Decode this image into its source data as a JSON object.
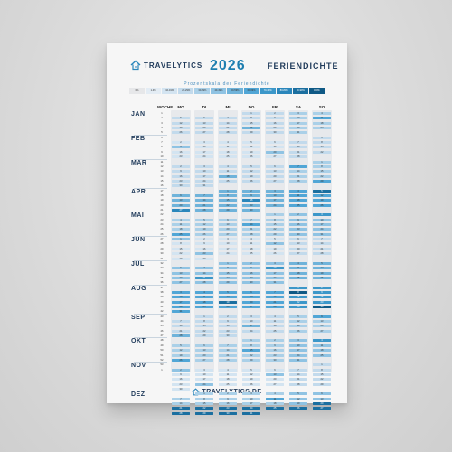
{
  "brand": "TRAVELYTICS",
  "year": "2026",
  "title": "FERIENDICHTE",
  "subtitle": "Prozentskala der Feriendichte",
  "legend": [
    {
      "label": "0%",
      "color": "#e6e7e9"
    },
    {
      "label": "1-9%",
      "color": "#e3ecf4"
    },
    {
      "label": "10-19%",
      "color": "#d3e4f1"
    },
    {
      "label": "20-29%",
      "color": "#c2daec"
    },
    {
      "label": "30-39%",
      "color": "#aad0e8"
    },
    {
      "label": "40-49%",
      "color": "#8fc3e3"
    },
    {
      "label": "50-59%",
      "color": "#6fb3da"
    },
    {
      "label": "60-69%",
      "color": "#51a6d6"
    },
    {
      "label": "70-79%",
      "color": "#3c97c9"
    },
    {
      "label": "80-89%",
      "color": "#2a86bb"
    },
    {
      "label": "90-99%",
      "color": "#1b6fa0"
    },
    {
      "label": "100%",
      "color": "#0f5985"
    }
  ],
  "week_header": "WOCHE",
  "days": [
    "MO",
    "DI",
    "MI",
    "DO",
    "FR",
    "SA",
    "SO"
  ],
  "months": [
    "JAN",
    "FEB",
    "MAR",
    "APR",
    "MAI",
    "JUN",
    "JUL",
    "AUG",
    "SEP",
    "OKT",
    "NOV",
    "DEZ"
  ],
  "footer": "TRAVELYTICS.DE"
}
